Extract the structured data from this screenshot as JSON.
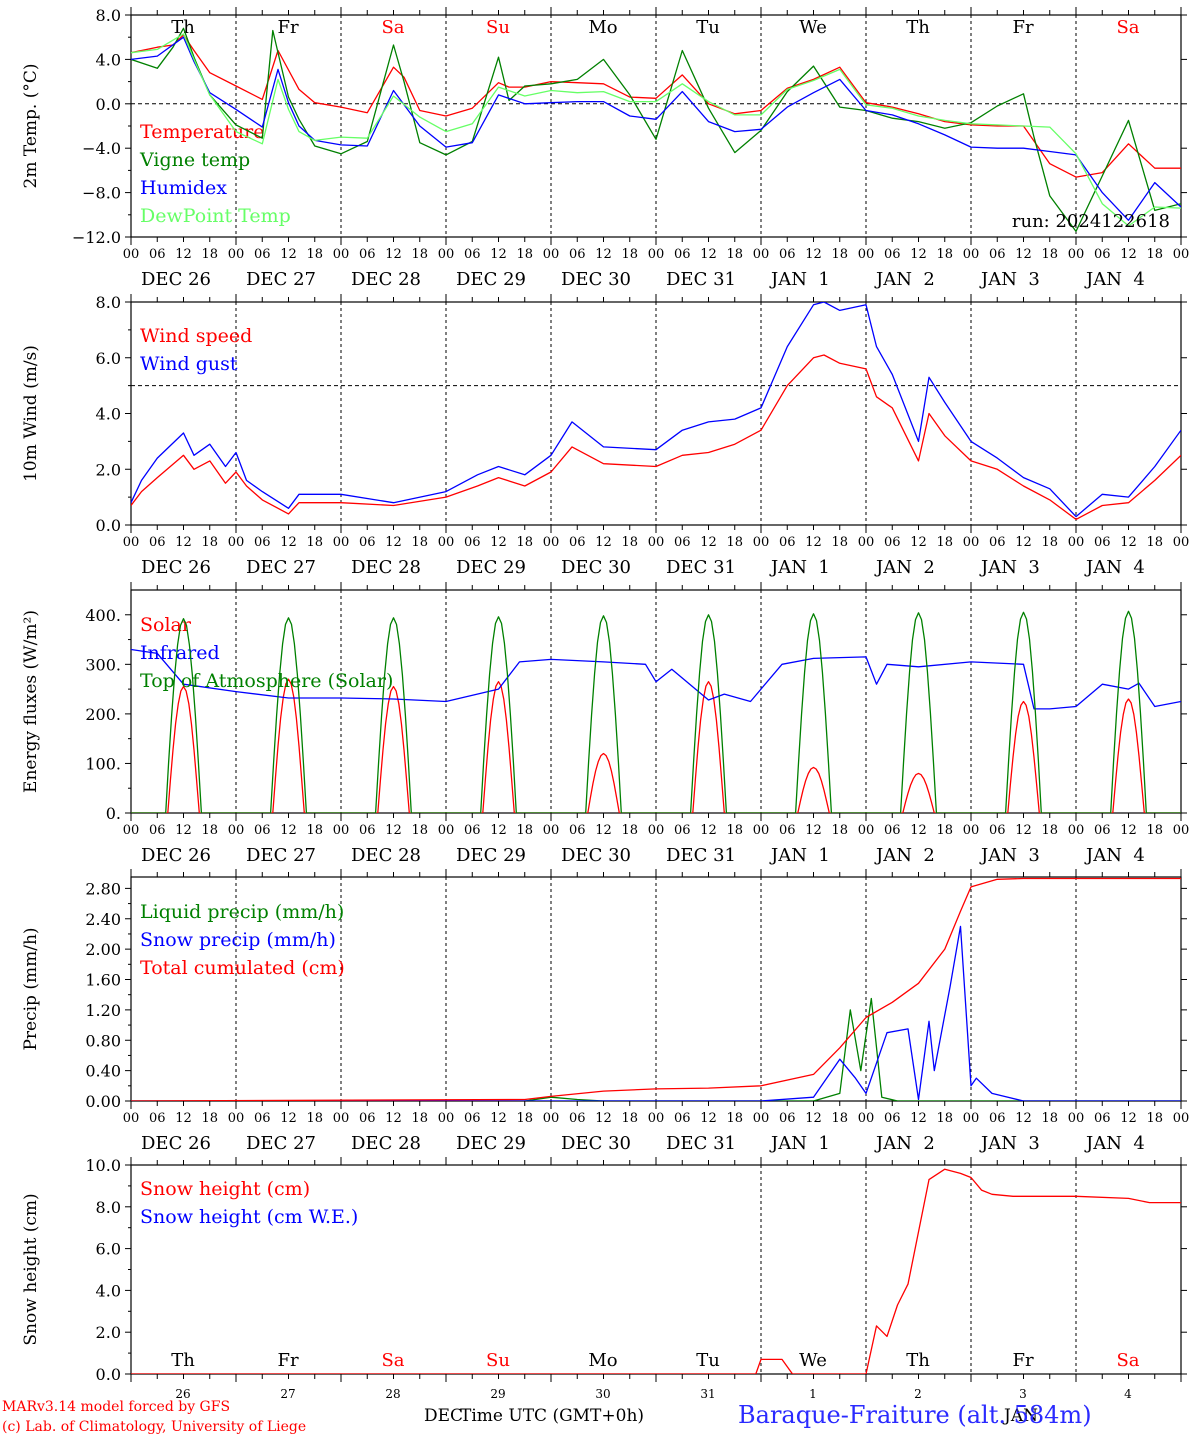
{
  "footer": {
    "credit_line1": "MARv3.14 model forced by GFS",
    "credit_line2": "(c) Lab. of Climatology, University of Liege",
    "xlabel": "Time UTC (GMT+0h)",
    "month_left": "DEC",
    "month_right": "JAN",
    "station": "Baraque-Fraiture (alt. 584m)"
  },
  "run_label": "run: 2024122618",
  "hour_ticks": [
    "00",
    "06",
    "12",
    "18"
  ],
  "date_labels": [
    "DEC 26",
    "DEC 27",
    "DEC 28",
    "DEC 29",
    "DEC 30",
    "DEC 31",
    "JAN  1",
    "JAN  2",
    "JAN  3",
    "JAN  4"
  ],
  "weekdays": [
    {
      "label": "Th",
      "color": "#000000"
    },
    {
      "label": "Fr",
      "color": "#000000"
    },
    {
      "label": "Sa",
      "color": "#ff0000"
    },
    {
      "label": "Su",
      "color": "#ff0000"
    },
    {
      "label": "Mo",
      "color": "#000000"
    },
    {
      "label": "Tu",
      "color": "#000000"
    },
    {
      "label": "We",
      "color": "#000000"
    },
    {
      "label": "Th",
      "color": "#000000"
    },
    {
      "label": "Fr",
      "color": "#000000"
    },
    {
      "label": "Sa",
      "color": "#ff0000"
    }
  ],
  "day_numbers": [
    "26",
    "27",
    "28",
    "29",
    "30",
    "31",
    "1",
    "2",
    "3",
    "4"
  ],
  "chart_data": [
    {
      "type": "line",
      "ylabel": "2m Temp. (°C)",
      "ylim": [
        -12,
        8
      ],
      "yticks": [
        8,
        4,
        0,
        -4,
        -8,
        -12
      ],
      "ytick_labels": [
        "8.0",
        "4.0",
        "0.0",
        "−4.0",
        "−8.0",
        "−12.0"
      ],
      "ref_line": 0,
      "x_unit": "days since DEC 26 00UTC",
      "series": [
        {
          "name": "Temperature",
          "color": "#ff0000",
          "x": [
            0,
            0.25,
            0.4,
            0.5,
            0.6,
            0.75,
            1.0,
            1.25,
            1.4,
            1.6,
            1.75,
            2.0,
            2.25,
            2.5,
            2.6,
            2.75,
            3.0,
            3.25,
            3.5,
            3.6,
            3.75,
            4.0,
            4.25,
            4.5,
            4.75,
            5.0,
            5.25,
            5.5,
            5.75,
            6.0,
            6.25,
            6.5,
            6.75,
            7.0,
            7.25,
            7.5,
            7.75,
            8.0,
            8.25,
            8.5,
            8.75,
            9.0,
            9.25,
            9.5,
            9.75,
            10.0
          ],
          "y": [
            4.6,
            5.1,
            5.3,
            6.2,
            4.8,
            2.8,
            1.6,
            0.4,
            4.8,
            1.3,
            0.1,
            -0.3,
            -0.8,
            3.3,
            2.4,
            -0.6,
            -1.1,
            -0.4,
            1.9,
            1.5,
            1.5,
            2.0,
            1.9,
            1.8,
            0.6,
            0.5,
            2.6,
            0.0,
            -0.9,
            -0.6,
            1.4,
            2.2,
            3.3,
            0.1,
            -0.3,
            -0.9,
            -1.6,
            -1.9,
            -2.0,
            -2.0,
            -5.4,
            -6.6,
            -6.2,
            -3.6,
            -5.8,
            -5.8
          ]
        },
        {
          "name": "Vigne temp",
          "color": "#008000",
          "x": [
            0,
            0.25,
            0.4,
            0.5,
            0.6,
            0.75,
            1.0,
            1.25,
            1.35,
            1.5,
            1.6,
            1.75,
            2.0,
            2.25,
            2.5,
            2.6,
            2.75,
            3.0,
            3.25,
            3.5,
            3.6,
            3.75,
            4.0,
            4.25,
            4.5,
            4.75,
            5.0,
            5.25,
            5.5,
            5.75,
            6.0,
            6.25,
            6.5,
            6.75,
            7.0,
            7.25,
            7.5,
            7.75,
            8.0,
            8.25,
            8.5,
            8.6,
            8.75,
            9.0,
            9.25,
            9.5,
            9.75,
            10.0
          ],
          "y": [
            4.0,
            3.2,
            5.1,
            6.8,
            4.2,
            0.8,
            -1.9,
            -3.1,
            6.6,
            0.6,
            -1.4,
            -3.8,
            -4.5,
            -3.4,
            5.3,
            2.0,
            -3.5,
            -4.6,
            -3.4,
            4.2,
            0.3,
            1.6,
            1.8,
            2.2,
            4.0,
            0.8,
            -3.2,
            4.8,
            -0.4,
            -4.4,
            -2.4,
            1.1,
            3.4,
            -0.3,
            -0.6,
            -1.3,
            -1.6,
            -2.2,
            -1.7,
            -0.2,
            0.9,
            -3.0,
            -8.3,
            -11.5,
            -6.5,
            -1.5,
            -9.6,
            -9.0
          ]
        },
        {
          "name": "Humidex",
          "color": "#0000ff",
          "x": [
            0,
            0.25,
            0.5,
            0.6,
            0.75,
            1.0,
            1.25,
            1.4,
            1.5,
            1.6,
            1.75,
            2.0,
            2.25,
            2.5,
            2.75,
            3.0,
            3.25,
            3.5,
            3.75,
            4.0,
            4.25,
            4.5,
            4.75,
            5.0,
            5.25,
            5.5,
            5.75,
            6.0,
            6.25,
            6.5,
            6.75,
            7.0,
            7.25,
            7.5,
            7.75,
            8.0,
            8.25,
            8.5,
            8.75,
            9.0,
            9.25,
            9.5,
            9.75,
            10.0
          ],
          "y": [
            4.0,
            4.3,
            6.0,
            3.8,
            1.0,
            -0.5,
            -2.1,
            3.1,
            0.1,
            -2.0,
            -3.3,
            -3.7,
            -3.8,
            1.2,
            -2.0,
            -3.9,
            -3.5,
            0.8,
            0.0,
            0.1,
            0.2,
            0.2,
            -1.1,
            -1.4,
            1.1,
            -1.6,
            -2.5,
            -2.3,
            -0.3,
            1.0,
            2.2,
            -0.6,
            -1.0,
            -1.8,
            -2.8,
            -3.9,
            -4.0,
            -4.0,
            -4.3,
            -4.6,
            -8.0,
            -10.5,
            -7.1,
            -9.3
          ]
        },
        {
          "name": "DewPoint Temp",
          "color": "#66ff66",
          "x": [
            0,
            0.25,
            0.5,
            0.6,
            0.75,
            1.0,
            1.25,
            1.4,
            1.5,
            1.6,
            1.75,
            2.0,
            2.25,
            2.5,
            2.75,
            3.0,
            3.25,
            3.5,
            3.75,
            4.0,
            4.25,
            4.5,
            4.75,
            5.0,
            5.25,
            5.5,
            5.75,
            6.0,
            6.25,
            6.5,
            6.75,
            7.0,
            7.25,
            7.5,
            7.75,
            8.0,
            8.25,
            8.5,
            8.75,
            9.0,
            9.25,
            9.5,
            9.75,
            10.0
          ],
          "y": [
            4.6,
            4.9,
            6.3,
            4.0,
            0.8,
            -2.5,
            -3.6,
            2.2,
            -0.5,
            -2.5,
            -3.3,
            -3.0,
            -3.1,
            0.7,
            -1.2,
            -2.5,
            -1.8,
            1.5,
            0.7,
            1.2,
            1.0,
            1.1,
            0.2,
            0.2,
            1.8,
            0.2,
            -1.0,
            -1.0,
            1.3,
            2.1,
            3.1,
            -0.1,
            -0.4,
            -1.1,
            -1.5,
            -1.8,
            -1.9,
            -2.0,
            -2.1,
            -4.5,
            -9.0,
            -11.0,
            -9.3,
            -9.4
          ]
        }
      ]
    },
    {
      "type": "line",
      "ylabel": "10m Wind (m/s)",
      "ylim": [
        0,
        8
      ],
      "yticks": [
        0,
        2,
        4,
        6,
        8
      ],
      "ytick_labels": [
        "0.0",
        "2.0",
        "4.0",
        "6.0",
        "8.0"
      ],
      "ref_line": 5,
      "series": [
        {
          "name": "Wind speed",
          "color": "#ff0000",
          "x": [
            0,
            0.1,
            0.25,
            0.5,
            0.6,
            0.75,
            0.9,
            1.0,
            1.1,
            1.25,
            1.5,
            1.6,
            2.0,
            2.5,
            3.0,
            3.3,
            3.5,
            3.75,
            4.0,
            4.2,
            4.5,
            5.0,
            5.25,
            5.5,
            5.75,
            6.0,
            6.25,
            6.5,
            6.6,
            6.75,
            7.0,
            7.1,
            7.25,
            7.5,
            7.6,
            7.75,
            8.0,
            8.25,
            8.5,
            8.75,
            9.0,
            9.25,
            9.5,
            9.75,
            10.0
          ],
          "y": [
            0.7,
            1.2,
            1.7,
            2.5,
            2.0,
            2.3,
            1.5,
            1.9,
            1.4,
            0.9,
            0.4,
            0.8,
            0.8,
            0.7,
            1.0,
            1.4,
            1.7,
            1.4,
            1.9,
            2.8,
            2.2,
            2.1,
            2.5,
            2.6,
            2.9,
            3.4,
            5.0,
            6.0,
            6.1,
            5.8,
            5.6,
            4.6,
            4.2,
            2.3,
            4.0,
            3.2,
            2.3,
            2.0,
            1.4,
            0.9,
            0.2,
            0.7,
            0.8,
            1.6,
            2.5
          ]
        },
        {
          "name": "Wind gust",
          "color": "#0000ff",
          "x": [
            0,
            0.1,
            0.25,
            0.5,
            0.6,
            0.75,
            0.9,
            1.0,
            1.1,
            1.25,
            1.5,
            1.6,
            2.0,
            2.5,
            3.0,
            3.3,
            3.5,
            3.75,
            4.0,
            4.2,
            4.5,
            5.0,
            5.25,
            5.5,
            5.75,
            6.0,
            6.25,
            6.5,
            6.6,
            6.75,
            7.0,
            7.1,
            7.25,
            7.5,
            7.6,
            7.75,
            8.0,
            8.25,
            8.5,
            8.75,
            9.0,
            9.25,
            9.5,
            9.75,
            10.0
          ],
          "y": [
            0.8,
            1.6,
            2.4,
            3.3,
            2.5,
            2.9,
            2.1,
            2.6,
            1.6,
            1.2,
            0.6,
            1.1,
            1.1,
            0.8,
            1.2,
            1.8,
            2.1,
            1.8,
            2.5,
            3.7,
            2.8,
            2.7,
            3.4,
            3.7,
            3.8,
            4.2,
            6.4,
            7.9,
            8.0,
            7.7,
            7.9,
            6.4,
            5.4,
            3.0,
            5.3,
            4.4,
            3.0,
            2.4,
            1.7,
            1.3,
            0.3,
            1.1,
            1.0,
            2.1,
            3.4
          ]
        }
      ]
    },
    {
      "type": "line",
      "ylabel": "Energy fluxes (W/m²)",
      "ylim": [
        0,
        450
      ],
      "yticks": [
        0,
        100,
        200,
        300,
        400
      ],
      "ytick_labels": [
        "0.",
        "100.",
        "200.",
        "300.",
        "400."
      ],
      "series": [
        {
          "name": "Solar",
          "color": "#ff0000",
          "peaks": [
            {
              "day": 0,
              "value": 255
            },
            {
              "day": 1,
              "value": 270
            },
            {
              "day": 2,
              "value": 255
            },
            {
              "day": 3,
              "value": 265
            },
            {
              "day": 4,
              "value": 120
            },
            {
              "day": 5,
              "value": 265
            },
            {
              "day": 6,
              "value": 92
            },
            {
              "day": 7,
              "value": 80
            },
            {
              "day": 8,
              "value": 225
            },
            {
              "day": 9,
              "value": 230
            }
          ]
        },
        {
          "name": "Infrared",
          "color": "#0000ff",
          "x": [
            0,
            0.25,
            0.5,
            1.0,
            1.5,
            2.0,
            2.5,
            3.0,
            3.5,
            3.7,
            4.0,
            4.5,
            4.9,
            5.0,
            5.15,
            5.5,
            5.65,
            5.9,
            6.2,
            6.5,
            7.0,
            7.1,
            7.2,
            7.5,
            8.0,
            8.5,
            8.6,
            8.75,
            9.0,
            9.25,
            9.5,
            9.6,
            9.75,
            10.0
          ],
          "y": [
            330,
            322,
            260,
            245,
            232,
            232,
            230,
            225,
            250,
            305,
            310,
            305,
            300,
            265,
            290,
            228,
            240,
            225,
            300,
            312,
            315,
            260,
            300,
            295,
            305,
            300,
            210,
            210,
            215,
            260,
            250,
            262,
            215,
            225
          ]
        },
        {
          "name": "Top of Atmosphere (Solar)",
          "color": "#008000",
          "peaks": [
            {
              "day": 0,
              "value": 392
            },
            {
              "day": 1,
              "value": 394
            },
            {
              "day": 2,
              "value": 394
            },
            {
              "day": 3,
              "value": 396
            },
            {
              "day": 4,
              "value": 398
            },
            {
              "day": 5,
              "value": 400
            },
            {
              "day": 6,
              "value": 402
            },
            {
              "day": 7,
              "value": 404
            },
            {
              "day": 8,
              "value": 405
            },
            {
              "day": 9,
              "value": 407
            }
          ]
        }
      ]
    },
    {
      "type": "line",
      "ylabel": "Precip (mm/h)",
      "ylim": [
        0,
        2.95
      ],
      "yticks": [
        0,
        0.4,
        0.8,
        1.2,
        1.6,
        2.0,
        2.4,
        2.8
      ],
      "ytick_labels": [
        "0.00",
        "0.40",
        "0.80",
        "1.20",
        "1.60",
        "2.00",
        "2.40",
        "2.80"
      ],
      "series": [
        {
          "name": "Liquid precip (mm/h)",
          "color": "#008000",
          "x": [
            0,
            3.75,
            4.0,
            4.25,
            4.5,
            6.5,
            6.75,
            6.85,
            6.95,
            7.05,
            7.15,
            7.3,
            7.5,
            10.0
          ],
          "y": [
            0,
            0,
            0.05,
            0.02,
            0,
            0,
            0.1,
            1.2,
            0.4,
            1.35,
            0.05,
            0,
            0,
            0
          ]
        },
        {
          "name": "Snow precip (mm/h)",
          "color": "#0000ff",
          "x": [
            0,
            6.0,
            6.5,
            6.75,
            6.9,
            7.0,
            7.2,
            7.4,
            7.5,
            7.6,
            7.65,
            7.8,
            7.9,
            8.0,
            8.05,
            8.2,
            8.5,
            10.0
          ],
          "y": [
            0,
            0,
            0.05,
            0.55,
            0.3,
            0.1,
            0.9,
            0.95,
            0.02,
            1.05,
            0.4,
            1.5,
            2.3,
            0.2,
            0.3,
            0.1,
            0,
            0
          ]
        },
        {
          "name": "Total cumulated (cm)",
          "color": "#ff0000",
          "x": [
            0,
            3.75,
            4.0,
            4.5,
            5.0,
            5.5,
            6.0,
            6.5,
            6.75,
            7.0,
            7.25,
            7.5,
            7.75,
            7.9,
            8.0,
            8.25,
            8.5,
            10.0
          ],
          "y": [
            0,
            0.02,
            0.06,
            0.13,
            0.16,
            0.17,
            0.2,
            0.35,
            0.7,
            1.1,
            1.3,
            1.55,
            2.0,
            2.5,
            2.82,
            2.92,
            2.93,
            2.93
          ]
        }
      ]
    },
    {
      "type": "line",
      "ylabel": "Snow height (cm)",
      "ylim": [
        0,
        10
      ],
      "yticks": [
        0,
        2,
        4,
        6,
        8,
        10
      ],
      "ytick_labels": [
        "0.0",
        "2.0",
        "4.0",
        "6.0",
        "8.0",
        "10.0"
      ],
      "series": [
        {
          "name": "Snow height (cm)",
          "color": "#ff0000",
          "x": [
            0,
            5.95,
            6.0,
            6.2,
            6.3,
            7.0,
            7.1,
            7.2,
            7.3,
            7.4,
            7.6,
            7.75,
            7.9,
            8.0,
            8.1,
            8.2,
            8.4,
            8.6,
            9.0,
            9.5,
            9.7,
            10.0
          ],
          "y": [
            0,
            0,
            0.7,
            0.7,
            0,
            0,
            2.3,
            1.8,
            3.3,
            4.3,
            9.3,
            9.8,
            9.6,
            9.4,
            8.8,
            8.6,
            8.5,
            8.5,
            8.5,
            8.4,
            8.2,
            8.2
          ]
        },
        {
          "name": "Snow height (cm W.E.)",
          "color": "#0000ff",
          "x": [],
          "y": []
        }
      ]
    }
  ]
}
